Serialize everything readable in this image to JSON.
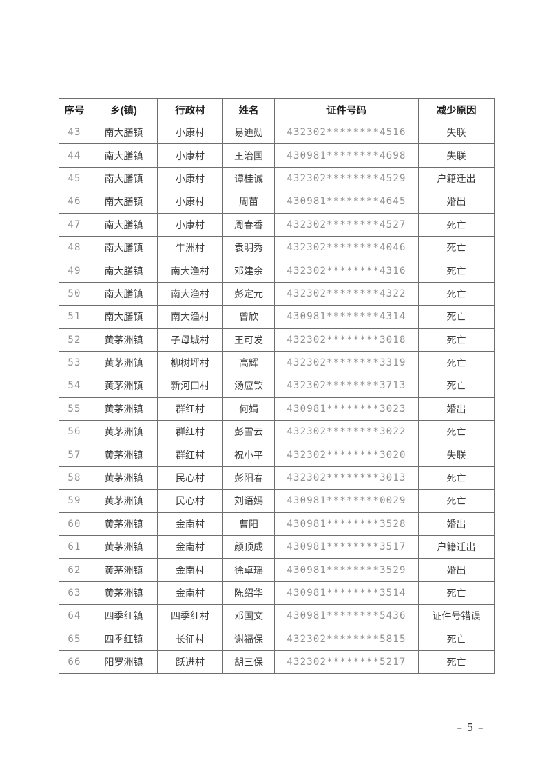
{
  "colors": {
    "border": "#6e6e6e",
    "cjk_text": "#3d3d3d",
    "num_text": "#8f8f8f",
    "header_text": "#1f1f1f",
    "page_bg": "#ffffff"
  },
  "footer": {
    "page_number": "– 5 –"
  },
  "table": {
    "headers": [
      "序号",
      "乡(镇)",
      "行政村",
      "姓名",
      "证件号码",
      "减少原因"
    ],
    "rows": [
      [
        "43",
        "南大膳镇",
        "小康村",
        "易迪勋",
        "432302********4516",
        "失联"
      ],
      [
        "44",
        "南大膳镇",
        "小康村",
        "王治国",
        "430981********4698",
        "失联"
      ],
      [
        "45",
        "南大膳镇",
        "小康村",
        "谭桂诚",
        "432302********4529",
        "户籍迁出"
      ],
      [
        "46",
        "南大膳镇",
        "小康村",
        "周苗",
        "430981********4645",
        "婚出"
      ],
      [
        "47",
        "南大膳镇",
        "小康村",
        "周春香",
        "432302********4527",
        "死亡"
      ],
      [
        "48",
        "南大膳镇",
        "牛洲村",
        "袁明秀",
        "432302********4046",
        "死亡"
      ],
      [
        "49",
        "南大膳镇",
        "南大渔村",
        "邓建余",
        "432302********4316",
        "死亡"
      ],
      [
        "50",
        "南大膳镇",
        "南大渔村",
        "彭定元",
        "432302********4322",
        "死亡"
      ],
      [
        "51",
        "南大膳镇",
        "南大渔村",
        "曾欣",
        "430981********4314",
        "死亡"
      ],
      [
        "52",
        "黄茅洲镇",
        "子母城村",
        "王可发",
        "432302********3018",
        "死亡"
      ],
      [
        "53",
        "黄茅洲镇",
        "柳树坪村",
        "高辉",
        "432302********3319",
        "死亡"
      ],
      [
        "54",
        "黄茅洲镇",
        "新河口村",
        "汤应钦",
        "432302********3713",
        "死亡"
      ],
      [
        "55",
        "黄茅洲镇",
        "群红村",
        "何娟",
        "430981********3023",
        "婚出"
      ],
      [
        "56",
        "黄茅洲镇",
        "群红村",
        "彭雪云",
        "432302********3022",
        "死亡"
      ],
      [
        "57",
        "黄茅洲镇",
        "群红村",
        "祝小平",
        "432302********3020",
        "失联"
      ],
      [
        "58",
        "黄茅洲镇",
        "民心村",
        "彭阳春",
        "432302********3013",
        "死亡"
      ],
      [
        "59",
        "黄茅洲镇",
        "民心村",
        "刘语嫣",
        "430981********0029",
        "死亡"
      ],
      [
        "60",
        "黄茅洲镇",
        "金南村",
        "曹阳",
        "430981********3528",
        "婚出"
      ],
      [
        "61",
        "黄茅洲镇",
        "金南村",
        "颜顶成",
        "430981********3517",
        "户籍迁出"
      ],
      [
        "62",
        "黄茅洲镇",
        "金南村",
        "徐卓瑶",
        "430981********3529",
        "婚出"
      ],
      [
        "63",
        "黄茅洲镇",
        "金南村",
        "陈绍华",
        "430981********3514",
        "死亡"
      ],
      [
        "64",
        "四季红镇",
        "四季红村",
        "邓国文",
        "430981********5436",
        "证件号错误"
      ],
      [
        "65",
        "四季红镇",
        "长征村",
        "谢福保",
        "432302********5815",
        "死亡"
      ],
      [
        "66",
        "阳罗洲镇",
        "跃进村",
        "胡三保",
        "432302********5217",
        "死亡"
      ]
    ]
  }
}
